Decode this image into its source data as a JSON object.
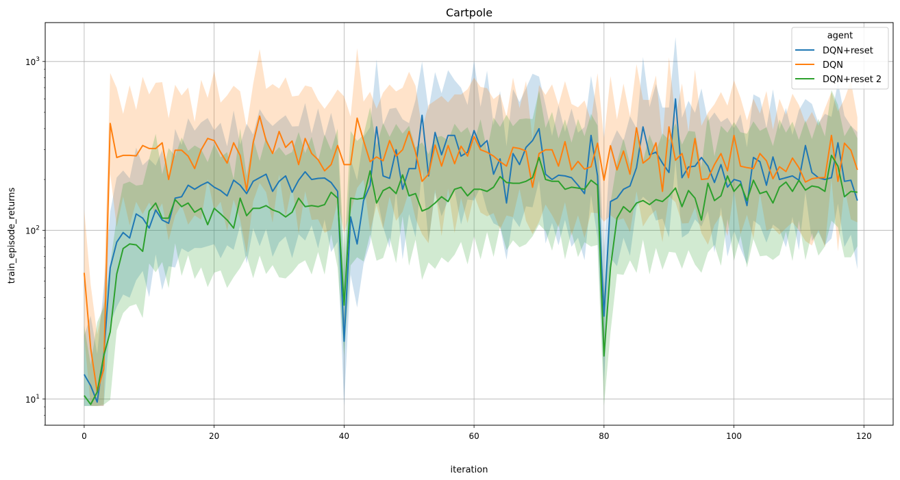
{
  "chart_data": {
    "type": "line",
    "title": "Cartpole",
    "xlabel": "iteration",
    "ylabel": "train_episode_returns",
    "xlim": [
      -6,
      124.5
    ],
    "ylim": [
      7,
      1700
    ],
    "yscale": "log",
    "grid": true,
    "x_ticks": [
      0,
      20,
      40,
      60,
      80,
      100,
      120
    ],
    "y_ticks": [
      10,
      100,
      1000
    ],
    "y_tick_labels": [
      {
        "base": "10",
        "exp": "1"
      },
      {
        "base": "10",
        "exp": "2"
      },
      {
        "base": "10",
        "exp": "3"
      }
    ],
    "legend": {
      "title": "agent",
      "position": "top-right"
    },
    "series": [
      {
        "name": "DQN+reset",
        "color": "#1f77b4",
        "x_start": 0,
        "values": [
          14,
          12,
          9.6,
          18,
          60,
          85,
          97,
          90,
          125,
          118,
          103,
          132,
          115,
          110,
          155,
          158,
          185,
          175,
          185,
          193,
          180,
          172,
          160,
          198,
          185,
          165,
          195,
          205,
          215,
          170,
          195,
          210,
          168,
          198,
          222,
          200,
          203,
          204,
          192,
          170,
          22,
          120,
          83,
          150,
          185,
          410,
          210,
          203,
          300,
          175,
          232,
          232,
          480,
          210,
          380,
          280,
          365,
          365,
          275,
          290,
          390,
          312,
          340,
          215,
          265,
          145,
          285,
          245,
          310,
          340,
          400,
          215,
          200,
          212,
          210,
          205,
          185,
          165,
          365,
          210,
          31,
          148,
          155,
          175,
          183,
          235,
          410,
          280,
          290,
          250,
          220,
          600,
          205,
          237,
          240,
          270,
          240,
          192,
          245,
          180,
          200,
          195,
          140,
          270,
          255,
          185,
          272,
          200,
          205,
          210,
          198,
          318,
          220,
          205,
          200,
          205,
          330,
          195,
          198,
          150
        ]
      },
      {
        "name": "DQN",
        "color": "#ff7f0e",
        "x_start": 0,
        "values": [
          56,
          20,
          11,
          15,
          430,
          270,
          278,
          278,
          276,
          318,
          305,
          305,
          330,
          200,
          298,
          298,
          275,
          232,
          300,
          350,
          340,
          290,
          250,
          330,
          278,
          172,
          330,
          475,
          340,
          285,
          385,
          310,
          338,
          245,
          350,
          285,
          262,
          225,
          245,
          318,
          245,
          245,
          462,
          340,
          255,
          272,
          258,
          340,
          275,
          300,
          385,
          290,
          195,
          215,
          320,
          240,
          318,
          248,
          315,
          275,
          360,
          300,
          290,
          275,
          255,
          240,
          310,
          305,
          295,
          180,
          285,
          300,
          300,
          240,
          335,
          228,
          256,
          230,
          238,
          328,
          198,
          317,
          228,
          295,
          215,
          405,
          250,
          268,
          330,
          170,
          410,
          260,
          285,
          205,
          350,
          200,
          202,
          245,
          285,
          225,
          365,
          240,
          235,
          232,
          285,
          258,
          202,
          238,
          223,
          268,
          235,
          193,
          202,
          205,
          205,
          365,
          195,
          328,
          298,
          228
        ]
      },
      {
        "name": "DQN+reset 2",
        "color": "#2ca02c",
        "x_start": 0,
        "values": [
          10.5,
          9.3,
          11,
          18,
          25,
          55,
          78,
          83,
          82,
          75,
          130,
          145,
          118,
          118,
          152,
          138,
          145,
          128,
          135,
          108,
          135,
          125,
          115,
          103,
          155,
          122,
          135,
          135,
          140,
          132,
          128,
          120,
          128,
          155,
          138,
          140,
          138,
          142,
          168,
          155,
          36,
          155,
          153,
          155,
          225,
          145,
          172,
          180,
          165,
          213,
          160,
          165,
          130,
          135,
          145,
          158,
          148,
          175,
          180,
          160,
          175,
          175,
          170,
          180,
          208,
          192,
          190,
          190,
          195,
          205,
          270,
          200,
          195,
          195,
          175,
          180,
          178,
          175,
          198,
          185,
          18,
          60,
          118,
          138,
          128,
          145,
          150,
          142,
          152,
          148,
          160,
          178,
          138,
          172,
          155,
          115,
          190,
          150,
          160,
          210,
          170,
          188,
          150,
          198,
          165,
          170,
          145,
          180,
          193,
          170,
          198,
          173,
          183,
          180,
          170,
          278,
          240,
          158,
          170,
          168
        ]
      }
    ]
  }
}
